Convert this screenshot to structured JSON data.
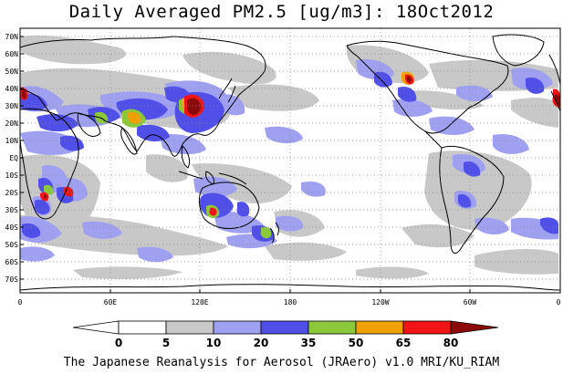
{
  "title": "Daily Averaged PM2.5 [ug/m3]: 18Oct2012",
  "footer": "The Japanese Reanalysis for Aerosol (JRAero) v1.0 MRI/KU_RIAM",
  "lat_labels": [
    "70N",
    "60N",
    "50N",
    "40N",
    "30N",
    "20N",
    "10N",
    "EQ",
    "10S",
    "20S",
    "30S",
    "40S",
    "50S",
    "60S",
    "70S"
  ],
  "lon_labels": [
    "0",
    "60E",
    "120E",
    "180",
    "120W",
    "60W",
    "0"
  ],
  "colorbar": {
    "bounds": [
      "0",
      "5",
      "10",
      "20",
      "35",
      "50",
      "65",
      "80"
    ],
    "colors": [
      "#ffffff",
      "#c8c8c8",
      "#a0a0f0",
      "#5050e8",
      "#8cc83c",
      "#f0a000",
      "#f01414",
      "#8c0a0a"
    ]
  }
}
